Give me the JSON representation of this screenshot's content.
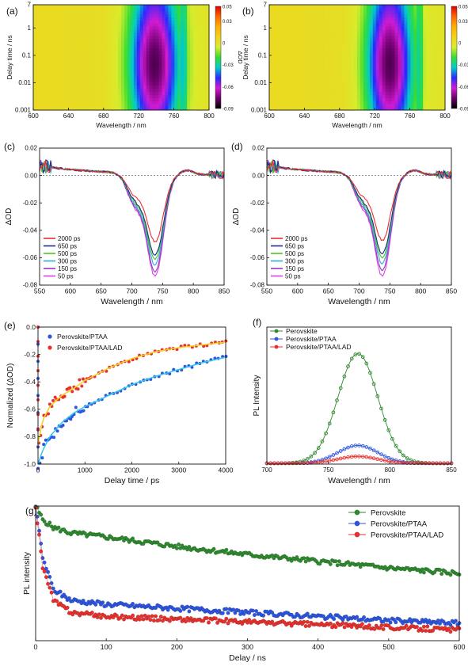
{
  "colorbar_ticks": [
    "0.05",
    "0.03",
    "0",
    "-0.03",
    "-0.06",
    "-0.09"
  ],
  "colormap": [
    "#000000",
    "#6a006a",
    "#d21bd2",
    "#2a2aff",
    "#00cccc",
    "#33dd33",
    "#d8ec2c",
    "#f2d21c",
    "#ffb000",
    "#ff6600",
    "#dd0000"
  ],
  "chart_data": [
    {
      "id": "a",
      "panel_label": "(a)",
      "type": "heatmap",
      "xlabel": "Wavelength / nm",
      "ylabel": "Delay time / ns",
      "zlabel": "ΔOD",
      "xlim": [
        600,
        800
      ],
      "ylim": [
        0.001,
        7
      ],
      "yscale": "log",
      "xticks": [
        "600",
        "640",
        "680",
        "720",
        "760",
        "800"
      ],
      "yticks": [
        "0.001",
        "0.01",
        "0.1",
        "1",
        "7"
      ],
      "zlim": [
        -0.09,
        0.05
      ],
      "bleach": {
        "center_wavelength": 738,
        "width_nm": 28,
        "min_dOD": -0.08,
        "peak_delay_ns": 0.05
      },
      "feature_line_nm": 772
    },
    {
      "id": "b",
      "panel_label": "(b)",
      "type": "heatmap",
      "xlabel": "Wavelength / nm",
      "ylabel": "Delay time / ns",
      "zlabel": "ΔOD",
      "xlim": [
        600,
        800
      ],
      "ylim": [
        0.001,
        7
      ],
      "yscale": "log",
      "xticks": [
        "600",
        "640",
        "680",
        "720",
        "760",
        "800"
      ],
      "yticks": [
        "0.001",
        "0.01",
        "0.1",
        "1",
        "7"
      ],
      "zlim": [
        -0.09,
        0.05
      ],
      "bleach": {
        "center_wavelength": 737,
        "width_nm": 26,
        "min_dOD": -0.08,
        "peak_delay_ns": 0.05
      },
      "feature_line_nm": 772
    },
    {
      "id": "c",
      "panel_label": "(c)",
      "type": "line",
      "xlabel": "Wavelength / nm",
      "ylabel": "ΔOD",
      "xlim": [
        550,
        850
      ],
      "ylim": [
        -0.08,
        0.02
      ],
      "xticks": [
        "550",
        "600",
        "650",
        "700",
        "750",
        "800",
        "850"
      ],
      "yticks": [
        "0.02",
        "0.00",
        "-0.02",
        "-0.04",
        "-0.06",
        "-0.08"
      ],
      "series": [
        {
          "name": "2000 ps",
          "color": "#e8302c",
          "min": -0.049
        },
        {
          "name": "650 ps",
          "color": "#1e2a8c",
          "min": -0.059
        },
        {
          "name": "500 ps",
          "color": "#4ec22c",
          "min": -0.062
        },
        {
          "name": "300 ps",
          "color": "#2eaad4",
          "min": -0.066
        },
        {
          "name": "150 ps",
          "color": "#8a3cc4",
          "min": -0.071
        },
        {
          "name": "50 ps",
          "color": "#e040e0",
          "min": -0.074
        }
      ]
    },
    {
      "id": "d",
      "panel_label": "(d)",
      "type": "line",
      "xlabel": "Wavelength / nm",
      "ylabel": "ΔOD",
      "xlim": [
        550,
        850
      ],
      "ylim": [
        -0.08,
        0.02
      ],
      "xticks": [
        "550",
        "600",
        "650",
        "700",
        "750",
        "800",
        "850"
      ],
      "yticks": [
        "0.02",
        "0.00",
        "-0.02",
        "-0.04",
        "-0.06",
        "-0.08"
      ],
      "series": [
        {
          "name": "2000 ps",
          "color": "#e8302c",
          "min": -0.048
        },
        {
          "name": "650 ps",
          "color": "#1e2a8c",
          "min": -0.058
        },
        {
          "name": "500 ps",
          "color": "#4ec22c",
          "min": -0.061
        },
        {
          "name": "300 ps",
          "color": "#2eaad4",
          "min": -0.065
        },
        {
          "name": "150 ps",
          "color": "#8a3cc4",
          "min": -0.07
        },
        {
          "name": "50 ps",
          "color": "#e040e0",
          "min": -0.074
        }
      ]
    },
    {
      "id": "e",
      "panel_label": "(e)",
      "type": "scatter",
      "xlabel": "Delay time / ps",
      "ylabel": "Normalized (ΔOD)",
      "xlim": [
        0,
        4000
      ],
      "ylim": [
        -1.0,
        0.0
      ],
      "xticks": [
        "0",
        "1000",
        "2000",
        "3000",
        "4000"
      ],
      "yticks": [
        "0.0",
        "-0.2",
        "-0.4",
        "-0.6",
        "-0.8",
        "-1.0"
      ],
      "series": [
        {
          "name": "Perovskite/PTAA",
          "color": "#2c55e0",
          "fit_color": "#2ec8e8",
          "x": [
            0,
            100,
            250,
            500,
            750,
            1000,
            1500,
            2000,
            2500,
            3000,
            3500,
            4000
          ],
          "y": [
            -1.0,
            -0.9,
            -0.8,
            -0.7,
            -0.63,
            -0.58,
            -0.5,
            -0.42,
            -0.36,
            -0.31,
            -0.26,
            -0.22
          ]
        },
        {
          "name": "Perovskite/PTAA/LAD",
          "color": "#e8302c",
          "fit_color": "#f2d21c",
          "x": [
            0,
            100,
            250,
            500,
            750,
            1000,
            1500,
            2000,
            2500,
            3000,
            3500,
            4000
          ],
          "y": [
            -0.85,
            -0.68,
            -0.58,
            -0.5,
            -0.45,
            -0.39,
            -0.3,
            -0.23,
            -0.18,
            -0.15,
            -0.13,
            -0.11
          ]
        }
      ]
    },
    {
      "id": "f",
      "panel_label": "(f)",
      "type": "scatter",
      "xlabel": "Wavelength / nm",
      "ylabel": "PL Intensity",
      "xlim": [
        700,
        850
      ],
      "ylim": [
        0,
        1.0
      ],
      "xticks": [
        "700",
        "750",
        "800",
        "850"
      ],
      "series": [
        {
          "name": "Perovskite",
          "color": "#2e8a2e",
          "peak_nm": 774,
          "amplitude": 0.8,
          "fwhm_nm": 38
        },
        {
          "name": "Perovskite/PTAA",
          "color": "#2c55e0",
          "peak_nm": 774,
          "amplitude": 0.13,
          "fwhm_nm": 38
        },
        {
          "name": "Perovskite/PTAA/LAD",
          "color": "#e8302c",
          "peak_nm": 774,
          "amplitude": 0.05,
          "fwhm_nm": 38
        }
      ]
    },
    {
      "id": "g",
      "panel_label": "(g)",
      "type": "scatter",
      "xlabel": "Delay / ns",
      "ylabel": "PL intensity",
      "xlim": [
        0,
        600
      ],
      "ylim": [
        0,
        1.0
      ],
      "xticks": [
        "0",
        "100",
        "200",
        "300",
        "400",
        "500",
        "600"
      ],
      "series": [
        {
          "name": "Perovskite",
          "color": "#2e8a2e",
          "x": [
            0,
            10,
            25,
            50,
            100,
            200,
            300,
            400,
            500,
            600
          ],
          "y": [
            1.0,
            0.9,
            0.84,
            0.8,
            0.77,
            0.7,
            0.64,
            0.59,
            0.54,
            0.5
          ]
        },
        {
          "name": "Perovskite/PTAA",
          "color": "#2c55e0",
          "x": [
            0,
            10,
            25,
            50,
            100,
            200,
            300,
            400,
            500,
            600
          ],
          "y": [
            1.0,
            0.62,
            0.38,
            0.3,
            0.27,
            0.24,
            0.21,
            0.18,
            0.15,
            0.13
          ]
        },
        {
          "name": "Perovskite/PTAA/LAD",
          "color": "#e8302c",
          "x": [
            0,
            10,
            25,
            50,
            100,
            200,
            300,
            400,
            500,
            600
          ],
          "y": [
            1.0,
            0.55,
            0.3,
            0.21,
            0.18,
            0.16,
            0.14,
            0.12,
            0.1,
            0.08
          ]
        }
      ]
    }
  ]
}
